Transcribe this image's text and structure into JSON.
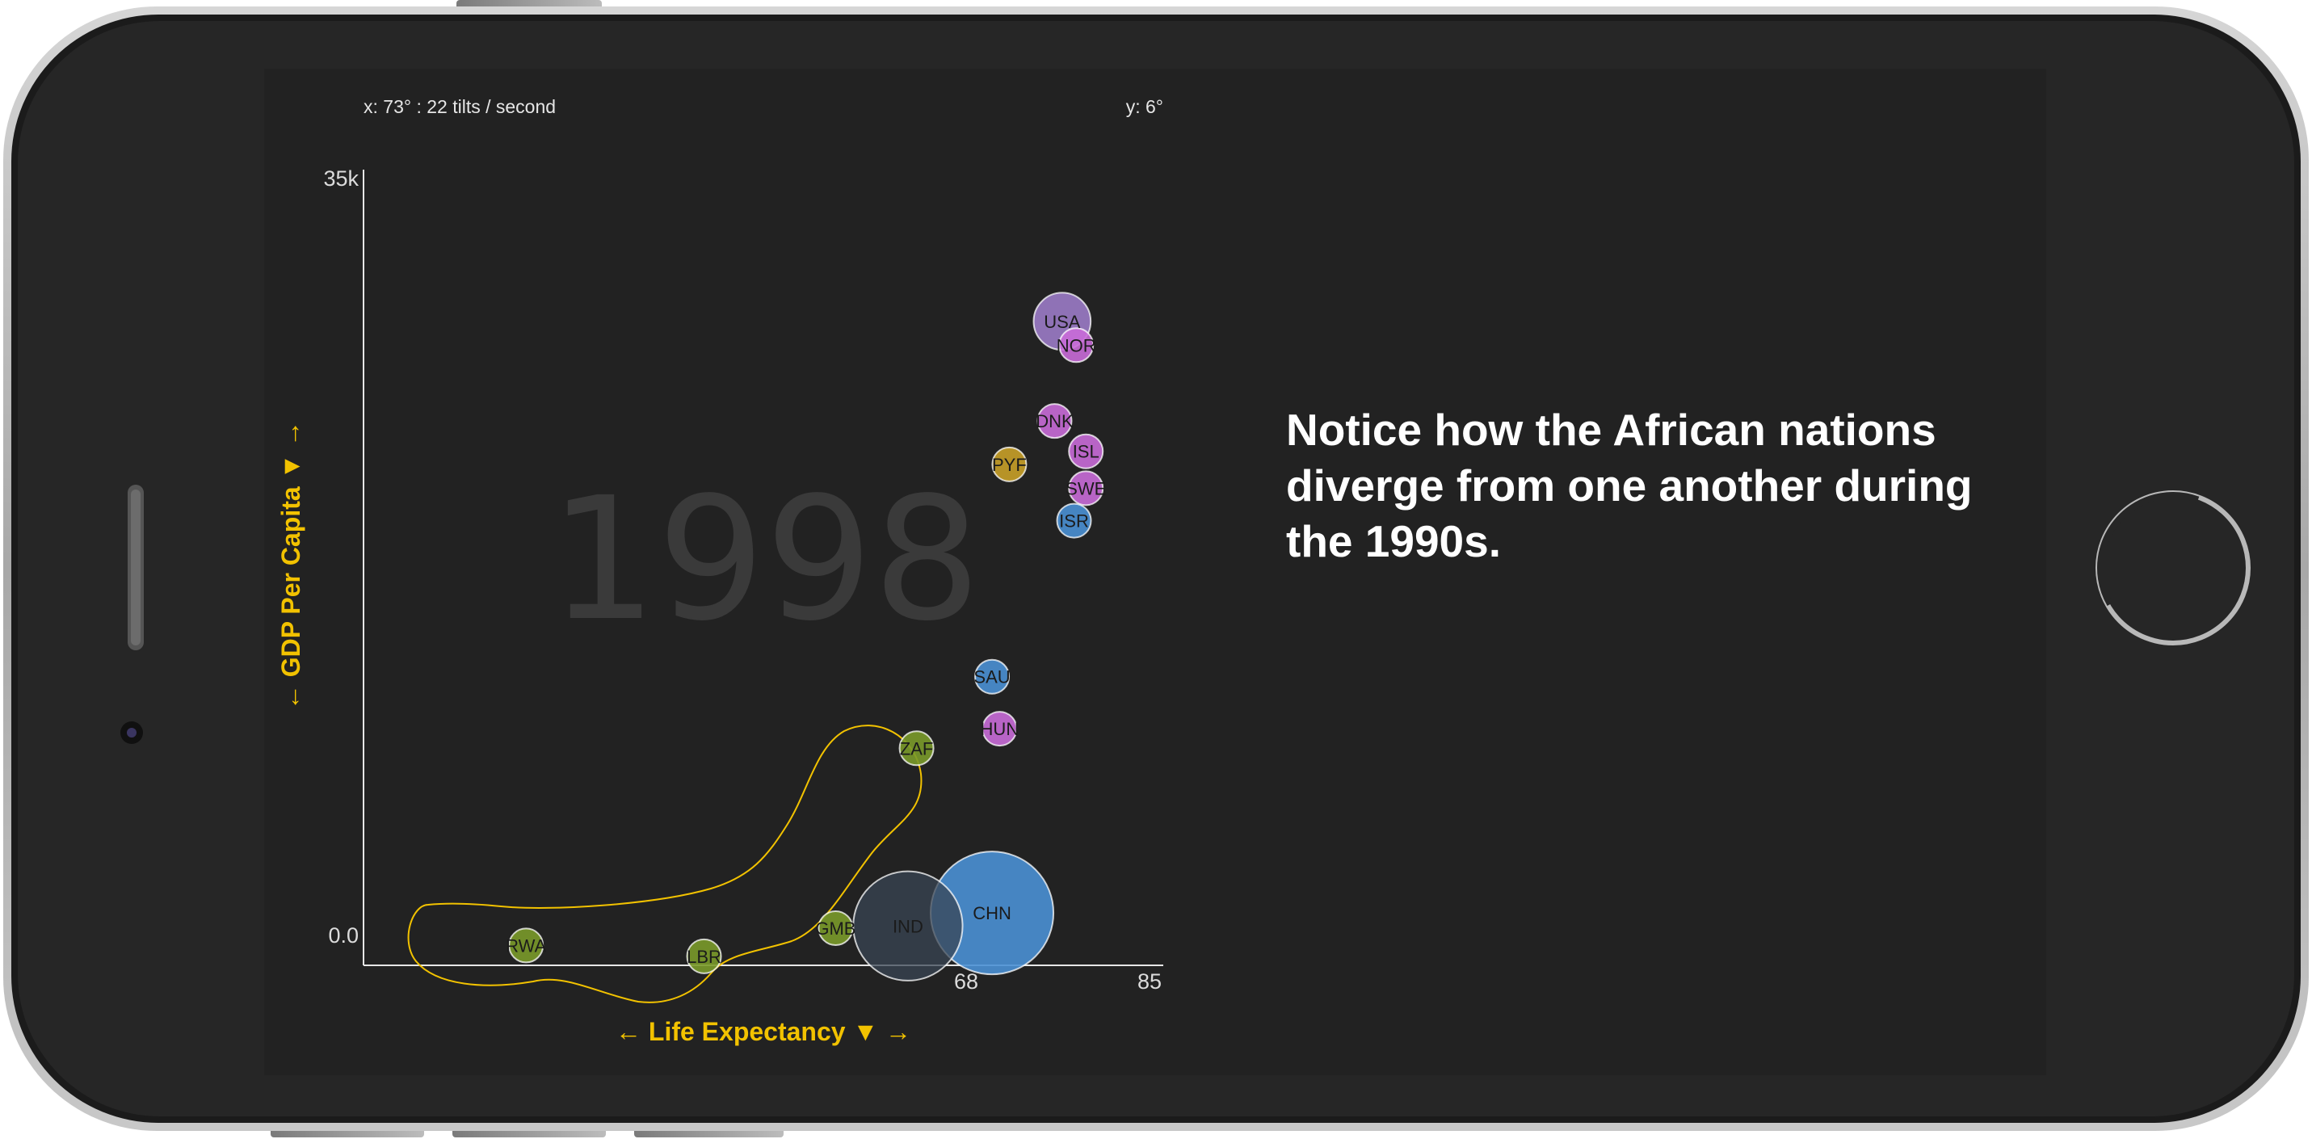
{
  "hud": {
    "x_readout": "x: 73° : 22 tilts / second",
    "y_readout": "y: 6°"
  },
  "year_label": "1998",
  "caption": "Notice how the African nations diverge from one another during the 1990s.",
  "colors": {
    "accent": "#f2c200",
    "africa": "#7a9a2a",
    "americas_europe_purple": "#9b7bc6",
    "europe_magenta": "#c96cd8",
    "asia_blue": "#4a90d4",
    "oceania_gold": "#c8a028",
    "india_gray": "#394654"
  },
  "chart_data": {
    "type": "scatter",
    "title": "",
    "xlabel": "← Life Expectancy ▼ →",
    "ylabel": "← GDP Per Capita ▼ →",
    "x_ticks": [
      "68",
      "85"
    ],
    "y_ticks": [
      "35k",
      "0.0"
    ],
    "points": [
      {
        "label": "USA",
        "x": 76.9,
        "y": 28300,
        "size": 270,
        "color": "#9b7bc6"
      },
      {
        "label": "NOR",
        "x": 78.2,
        "y": 27200,
        "size": 4,
        "color": "#c96cd8"
      },
      {
        "label": "DNK",
        "x": 76.2,
        "y": 23700,
        "size": 5,
        "color": "#c96cd8"
      },
      {
        "label": "ISL",
        "x": 79.1,
        "y": 22300,
        "size": 0.3,
        "color": "#c96cd8"
      },
      {
        "label": "PYF",
        "x": 72.0,
        "y": 21700,
        "size": 0.2,
        "color": "#c8a028"
      },
      {
        "label": "SWE",
        "x": 79.1,
        "y": 20600,
        "size": 9,
        "color": "#c96cd8"
      },
      {
        "label": "ISR",
        "x": 78.0,
        "y": 19100,
        "size": 6,
        "color": "#4a90d4"
      },
      {
        "label": "SAU",
        "x": 70.4,
        "y": 11900,
        "size": 20,
        "color": "#4a90d4"
      },
      {
        "label": "HUN",
        "x": 71.1,
        "y": 9500,
        "size": 10,
        "color": "#c96cd8"
      },
      {
        "label": "ZAF",
        "x": 63.4,
        "y": 8600,
        "size": 42,
        "color": "#7a9a2a"
      },
      {
        "label": "CHN",
        "x": 70.4,
        "y": 1000,
        "size": 1250,
        "color": "#4a90d4"
      },
      {
        "label": "IND",
        "x": 62.6,
        "y": 400,
        "size": 990,
        "color": "#394654"
      },
      {
        "label": "GMB",
        "x": 55.9,
        "y": 300,
        "size": 1.3,
        "color": "#7a9a2a"
      },
      {
        "label": "LBR",
        "x": 43.7,
        "y": -1000,
        "size": 2.5,
        "color": "#7a9a2a"
      },
      {
        "label": "RWA",
        "x": 27.2,
        "y": -500,
        "size": 7,
        "color": "#7a9a2a"
      }
    ],
    "highlight": "African nations"
  }
}
